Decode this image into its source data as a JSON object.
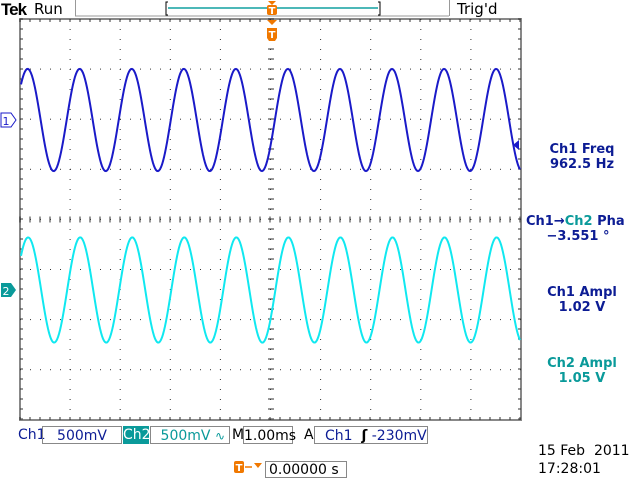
{
  "header": {
    "brand": "Tek",
    "run_state": "Run",
    "trigger_status": "Trig'd"
  },
  "colors": {
    "ch1": "#1a1ac8",
    "ch2": "#10e8f0",
    "ch2_text": "#0a9a9a",
    "trigger": "#f07800",
    "graticule": "#555555"
  },
  "channels": {
    "ch1": {
      "marker": "1",
      "label": "Ch1",
      "scale": "500mV"
    },
    "ch2": {
      "marker": "2",
      "label": "Ch2",
      "scale": "500mV",
      "coupling_icon": "∿"
    }
  },
  "timebase": {
    "label": "M",
    "value": "1.00ms"
  },
  "trigger": {
    "mode": "A",
    "source": "Ch1",
    "slope_icon": "rising-edge",
    "slope_glyph": "ʃ",
    "level": "-230mV",
    "marker": "T",
    "position_value": "0.00000 s"
  },
  "measurements": [
    {
      "label": "Ch1 Freq",
      "value": "962.5 Hz"
    },
    {
      "label_a": "Ch1",
      "arrow": "→",
      "label_b": "Ch2",
      "label_c": " Pha",
      "value": "−3.551 °"
    },
    {
      "label": "Ch1 Ampl",
      "value": "1.02 V"
    },
    {
      "label": "Ch2 Ampl",
      "value": "1.05 V"
    }
  ],
  "datetime": {
    "date": "15 Feb  2011",
    "time": "17:28:01"
  }
}
